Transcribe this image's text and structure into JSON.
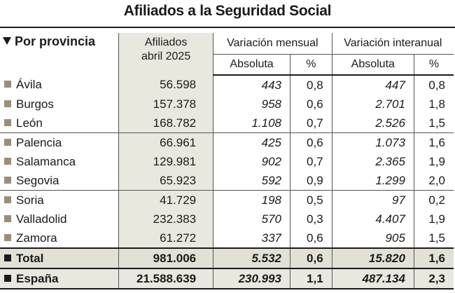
{
  "title": "Afiliados a la Seguridad Social",
  "header": {
    "provincia": "Por provincia",
    "afiliados_line1": "Afiliados",
    "afiliados_line2": "abril 2025",
    "variacion_mensual": "Variación mensual",
    "variacion_interanual": "Variación interanual",
    "absoluta": "Absoluta",
    "pct": "%"
  },
  "rows": [
    {
      "provincia": "Ávila",
      "afiliados": "56.598",
      "mensual_abs": "443",
      "mensual_pct": "0,8",
      "interanual_abs": "447",
      "interanual_pct": "0,8"
    },
    {
      "provincia": "Burgos",
      "afiliados": "157.378",
      "mensual_abs": "958",
      "mensual_pct": "0,6",
      "interanual_abs": "2.701",
      "interanual_pct": "1,8"
    },
    {
      "provincia": "León",
      "afiliados": "168.782",
      "mensual_abs": "1.108",
      "mensual_pct": "0,7",
      "interanual_abs": "2.526",
      "interanual_pct": "1,5"
    },
    {
      "provincia": "Palencia",
      "afiliados": "66.961",
      "mensual_abs": "425",
      "mensual_pct": "0,6",
      "interanual_abs": "1.073",
      "interanual_pct": "1,6"
    },
    {
      "provincia": "Salamanca",
      "afiliados": "129.981",
      "mensual_abs": "902",
      "mensual_pct": "0,7",
      "interanual_abs": "2.365",
      "interanual_pct": "1,9"
    },
    {
      "provincia": "Segovia",
      "afiliados": "65.923",
      "mensual_abs": "592",
      "mensual_pct": "0,9",
      "interanual_abs": "1.299",
      "interanual_pct": "2,0"
    },
    {
      "provincia": "Soria",
      "afiliados": "41.729",
      "mensual_abs": "198",
      "mensual_pct": "0,5",
      "interanual_abs": "97",
      "interanual_pct": "0,2"
    },
    {
      "provincia": "Valladolid",
      "afiliados": "232.383",
      "mensual_abs": "570",
      "mensual_pct": "0,3",
      "interanual_abs": "4.407",
      "interanual_pct": "1,9"
    },
    {
      "provincia": "Zamora",
      "afiliados": "61.272",
      "mensual_abs": "337",
      "mensual_pct": "0,6",
      "interanual_abs": "905",
      "interanual_pct": "1,5"
    }
  ],
  "total": {
    "provincia": "Total",
    "afiliados": "981.006",
    "mensual_abs": "5.532",
    "mensual_pct": "0,6",
    "interanual_abs": "15.820",
    "interanual_pct": "1,6"
  },
  "espana": {
    "provincia": "España",
    "afiliados": "21.588.639",
    "mensual_abs": "230.993",
    "mensual_pct": "1,1",
    "interanual_abs": "487.134",
    "interanual_pct": "2,3"
  },
  "colors": {
    "row_marker": "#9a8f78",
    "afiliados_column": "#e9e8df",
    "total_row": "#e3e1d6"
  }
}
